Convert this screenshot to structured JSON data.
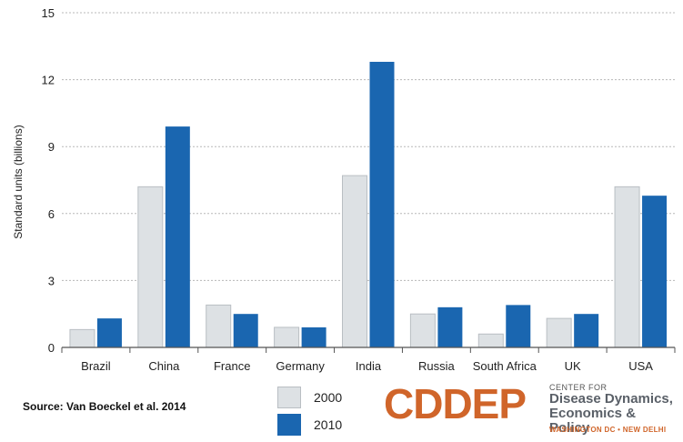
{
  "chart_data": {
    "type": "bar",
    "categories": [
      "Brazil",
      "China",
      "France",
      "Germany",
      "India",
      "Russia",
      "South Africa",
      "UK",
      "USA"
    ],
    "series": [
      {
        "name": "2000",
        "values": [
          0.8,
          7.2,
          1.9,
          0.9,
          7.7,
          1.5,
          0.6,
          1.3,
          7.2
        ],
        "color": "#dde1e4"
      },
      {
        "name": "2010",
        "values": [
          1.3,
          9.9,
          1.5,
          0.9,
          12.8,
          1.8,
          1.9,
          1.5,
          6.8
        ],
        "color": "#1a66b0"
      }
    ],
    "ylabel": "Standard units (billions)",
    "xlabel": "",
    "ylim": [
      0,
      15
    ],
    "yticks": [
      0,
      3,
      6,
      9,
      12,
      15
    ],
    "grid": "horizontal dashed",
    "legend_placement": "bottom-center"
  },
  "source": "Source: Van Boeckel et al. 2014",
  "legend": {
    "items": [
      "2000",
      "2010"
    ]
  },
  "logo": {
    "main": "CDDEP",
    "small": "CENTER FOR",
    "line1": "Disease Dynamics,",
    "line2": "Economics & Policy",
    "bottom": "WASHINGTON DC • NEW DELHI"
  }
}
